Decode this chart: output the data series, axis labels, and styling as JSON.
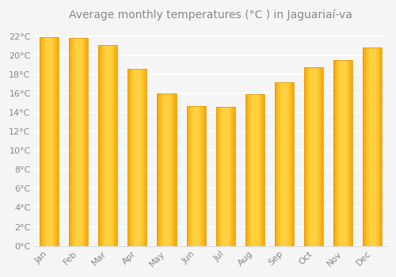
{
  "title": "Average monthly temperatures (°C ) in Jaguariaí-va",
  "months": [
    "Jan",
    "Feb",
    "Mar",
    "Apr",
    "May",
    "Jun",
    "Jul",
    "Aug",
    "Sep",
    "Oct",
    "Nov",
    "Dec"
  ],
  "values": [
    21.9,
    21.8,
    21.1,
    18.6,
    16.0,
    14.7,
    14.6,
    15.9,
    17.2,
    18.7,
    19.5,
    20.8
  ],
  "bar_color_left": "#F5A800",
  "bar_color_center": "#FFD040",
  "bar_color_right": "#F5A800",
  "background_color": "#F5F5F5",
  "figure_background": "#F5F5F5",
  "grid_color": "#FFFFFF",
  "text_color": "#888888",
  "ylim": [
    0,
    23
  ],
  "yticks": [
    0,
    2,
    4,
    6,
    8,
    10,
    12,
    14,
    16,
    18,
    20,
    22
  ],
  "title_fontsize": 10,
  "tick_fontsize": 8,
  "bar_width": 0.65
}
